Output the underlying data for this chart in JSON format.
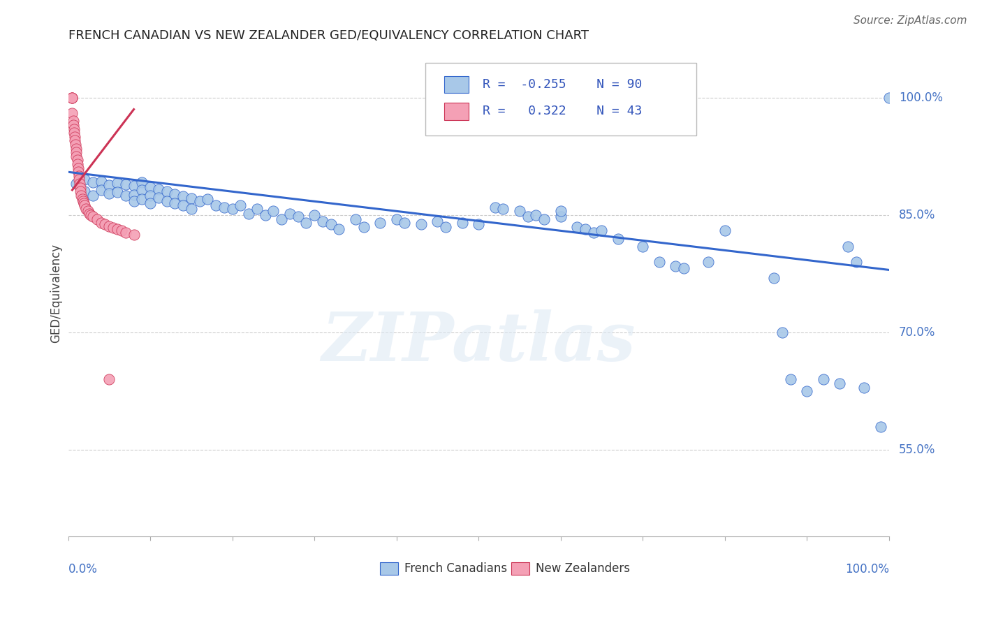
{
  "title": "FRENCH CANADIAN VS NEW ZEALANDER GED/EQUIVALENCY CORRELATION CHART",
  "source": "Source: ZipAtlas.com",
  "ylabel": "GED/Equivalency",
  "legend_label1": "French Canadians",
  "legend_label2": "New Zealanders",
  "R_blue": "-0.255",
  "N_blue": "90",
  "R_pink": "0.322",
  "N_pink": "43",
  "ytick_labels": [
    "55.0%",
    "70.0%",
    "85.0%",
    "100.0%"
  ],
  "ytick_values": [
    0.55,
    0.7,
    0.85,
    1.0
  ],
  "xlim": [
    0.0,
    1.0
  ],
  "ylim": [
    0.44,
    1.06
  ],
  "blue_color": "#a8c8e8",
  "pink_color": "#f4a0b5",
  "blue_line_color": "#3366cc",
  "pink_line_color": "#cc3355",
  "watermark": "ZIPatlas",
  "blue_scatter_x": [
    0.01,
    0.02,
    0.02,
    0.03,
    0.03,
    0.04,
    0.04,
    0.05,
    0.05,
    0.06,
    0.06,
    0.07,
    0.07,
    0.08,
    0.08,
    0.08,
    0.09,
    0.09,
    0.09,
    0.1,
    0.1,
    0.1,
    0.11,
    0.11,
    0.12,
    0.12,
    0.13,
    0.13,
    0.14,
    0.14,
    0.15,
    0.15,
    0.16,
    0.17,
    0.18,
    0.19,
    0.2,
    0.21,
    0.22,
    0.23,
    0.24,
    0.25,
    0.26,
    0.27,
    0.28,
    0.29,
    0.3,
    0.31,
    0.32,
    0.33,
    0.35,
    0.36,
    0.38,
    0.4,
    0.41,
    0.43,
    0.45,
    0.46,
    0.48,
    0.5,
    0.52,
    0.53,
    0.55,
    0.56,
    0.57,
    0.58,
    0.6,
    0.6,
    0.62,
    0.63,
    0.64,
    0.65,
    0.67,
    0.7,
    0.72,
    0.74,
    0.75,
    0.78,
    0.8,
    0.86,
    0.87,
    0.88,
    0.9,
    0.92,
    0.94,
    0.95,
    0.96,
    0.97,
    0.99,
    1.0
  ],
  "blue_scatter_y": [
    0.89,
    0.895,
    0.88,
    0.892,
    0.875,
    0.893,
    0.882,
    0.888,
    0.878,
    0.891,
    0.879,
    0.889,
    0.875,
    0.887,
    0.876,
    0.868,
    0.892,
    0.882,
    0.87,
    0.886,
    0.875,
    0.865,
    0.883,
    0.872,
    0.88,
    0.868,
    0.877,
    0.865,
    0.874,
    0.862,
    0.871,
    0.858,
    0.868,
    0.87,
    0.862,
    0.86,
    0.858,
    0.862,
    0.852,
    0.858,
    0.85,
    0.855,
    0.845,
    0.852,
    0.848,
    0.84,
    0.85,
    0.842,
    0.838,
    0.832,
    0.845,
    0.835,
    0.84,
    0.845,
    0.84,
    0.838,
    0.842,
    0.835,
    0.84,
    0.838,
    0.86,
    0.858,
    0.855,
    0.848,
    0.85,
    0.845,
    0.848,
    0.855,
    0.835,
    0.832,
    0.828,
    0.83,
    0.82,
    0.81,
    0.79,
    0.785,
    0.782,
    0.79,
    0.83,
    0.77,
    0.7,
    0.64,
    0.625,
    0.64,
    0.635,
    0.81,
    0.79,
    0.63,
    0.58,
    1.0
  ],
  "pink_scatter_x": [
    0.005,
    0.005,
    0.005,
    0.005,
    0.006,
    0.006,
    0.007,
    0.007,
    0.008,
    0.008,
    0.009,
    0.01,
    0.01,
    0.01,
    0.011,
    0.011,
    0.012,
    0.012,
    0.013,
    0.013,
    0.014,
    0.015,
    0.015,
    0.016,
    0.017,
    0.018,
    0.019,
    0.02,
    0.022,
    0.024,
    0.026,
    0.028,
    0.03,
    0.035,
    0.04,
    0.045,
    0.05,
    0.055,
    0.06,
    0.065,
    0.07,
    0.08,
    0.05
  ],
  "pink_scatter_y": [
    1.0,
    1.0,
    1.0,
    0.98,
    0.97,
    0.965,
    0.96,
    0.955,
    0.95,
    0.945,
    0.94,
    0.935,
    0.93,
    0.925,
    0.92,
    0.915,
    0.91,
    0.905,
    0.9,
    0.895,
    0.89,
    0.885,
    0.88,
    0.875,
    0.87,
    0.868,
    0.865,
    0.862,
    0.858,
    0.855,
    0.852,
    0.85,
    0.848,
    0.845,
    0.84,
    0.838,
    0.836,
    0.834,
    0.832,
    0.83,
    0.828,
    0.825,
    0.64
  ],
  "blue_line_x0": 0.0,
  "blue_line_y0": 0.905,
  "blue_line_x1": 1.0,
  "blue_line_y1": 0.78,
  "pink_line_x0": 0.005,
  "pink_line_y0": 0.882,
  "pink_line_x1": 0.08,
  "pink_line_y1": 0.985
}
